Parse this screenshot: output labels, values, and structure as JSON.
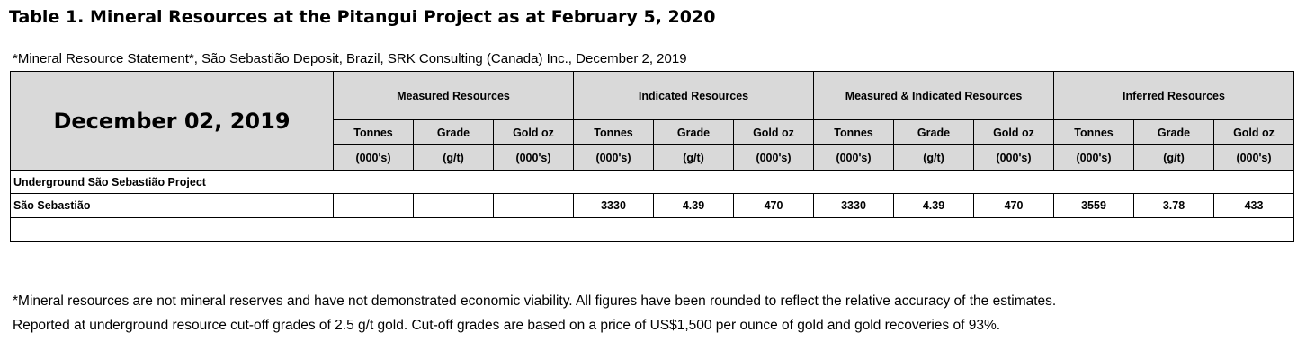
{
  "title": "Table 1. Mineral Resources at the Pitangui Project as at February 5, 2020",
  "subtitle": "*Mineral Resource Statement*, São Sebastião Deposit, Brazil, SRK Consulting (Canada) Inc., December 2, 2019",
  "table": {
    "date_header": "December 02, 2019",
    "groups": [
      "Measured Resources",
      "Indicated Resources",
      "Measured & Indicated Resources",
      "Inferred Resources"
    ],
    "columns": [
      "Tonnes",
      "Grade",
      "Gold oz",
      "Tonnes",
      "Grade",
      "Gold oz",
      "Tonnes",
      "Grade",
      "Gold oz",
      "Tonnes",
      "Grade",
      "Gold oz"
    ],
    "units": [
      "(000's)",
      "(g/t)",
      "(000's)",
      "(000's)",
      "(g/t)",
      "(000's)",
      "(000's)",
      "(g/t)",
      "(000's)",
      "(000's)",
      "(g/t)",
      "(000's)"
    ],
    "rows": [
      {
        "label": "Underground São Sebastião Project"
      },
      {
        "label": "São Sebastião",
        "values": [
          3330,
          4.39,
          470,
          3330,
          4.39,
          470,
          3559,
          3.78,
          433
        ]
      }
    ]
  },
  "footnotes": [
    "*Mineral resources are not mineral reserves and have not demonstrated economic viability. All figures have been rounded to reflect the relative accuracy of the estimates.",
    "Reported at underground resource cut-off grades of 2.5 g/t gold. Cut-off grades are based on a price of US$1,500 per ounce of gold and gold recoveries of 93%."
  ]
}
